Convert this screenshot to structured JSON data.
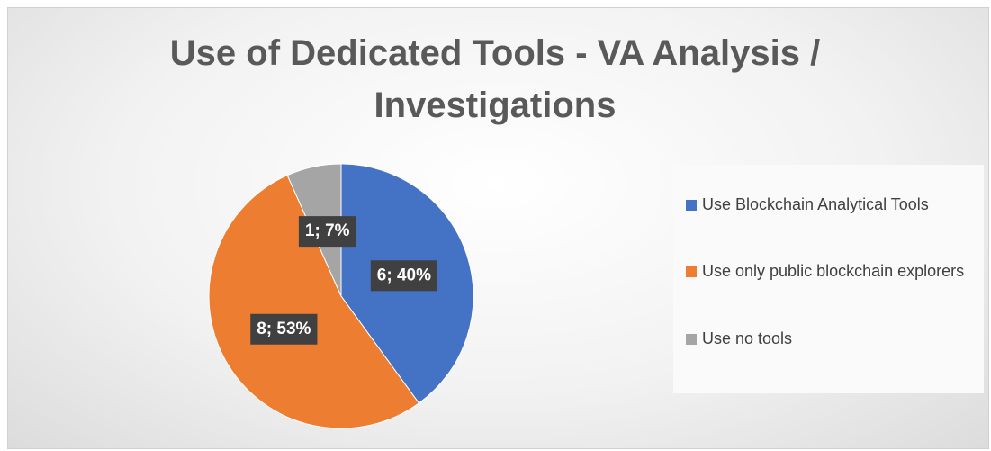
{
  "chart_data": {
    "type": "pie",
    "title": "Use of Dedicated Tools - VA Analysis / Investigations",
    "categories": [
      "Use Blockchain Analytical Tools",
      "Use only public blockchain explorers",
      "Use no tools"
    ],
    "values": [
      6,
      8,
      1
    ],
    "value_labels": [
      "6; 40%",
      "8; 53%",
      "1; 7%"
    ],
    "colors": [
      "#4472c4",
      "#ed7d31",
      "#a5a5a5"
    ],
    "legend": "right"
  }
}
